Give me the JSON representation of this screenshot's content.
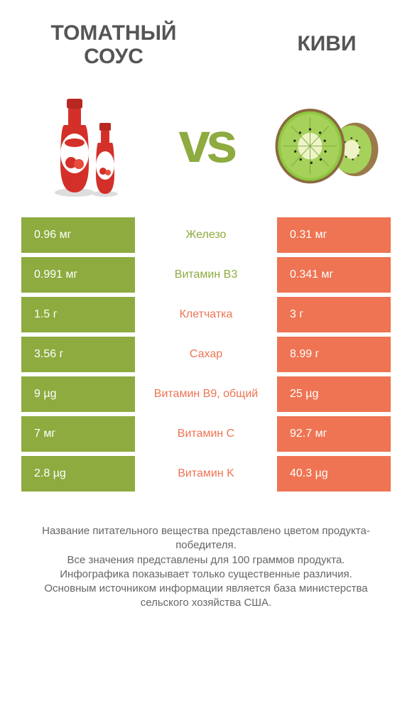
{
  "titles": {
    "left": "ТОМАТНЫЙ СОУС",
    "right": "КИВИ"
  },
  "vs": "vs",
  "colors": {
    "green": "#8dab3f",
    "orange": "#ee7453",
    "green_text": "#8dab3f",
    "orange_text": "#ee7453",
    "row_bg": "#ffffff"
  },
  "rows": [
    {
      "left": "0.96 мг",
      "mid": "Железо",
      "right": "0.31 мг",
      "winner": "left"
    },
    {
      "left": "0.991 мг",
      "mid": "Витамин B3",
      "right": "0.341 мг",
      "winner": "left"
    },
    {
      "left": "1.5 г",
      "mid": "Клетчатка",
      "right": "3 г",
      "winner": "right"
    },
    {
      "left": "3.56 г",
      "mid": "Сахар",
      "right": "8.99 г",
      "winner": "right"
    },
    {
      "left": "9 µg",
      "mid": "Витамин B9, общий",
      "right": "25 µg",
      "winner": "right"
    },
    {
      "left": "7 мг",
      "mid": "Витамин C",
      "right": "92.7 мг",
      "winner": "right"
    },
    {
      "left": "2.8 µg",
      "mid": "Витамин K",
      "right": "40.3 µg",
      "winner": "right"
    }
  ],
  "footer": [
    "Название питательного вещества представлено цветом продукта-победителя.",
    "Все значения представлены для 100 граммов продукта.",
    "Инфографика показывает только существенные различия.",
    "Основным источником информации является база министерства сельского хозяйства США."
  ]
}
